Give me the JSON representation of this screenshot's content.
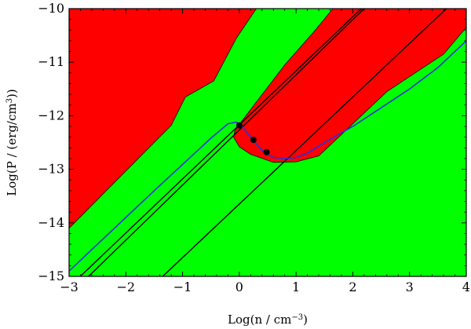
{
  "chart_data": {
    "type": "area",
    "title": "",
    "xlabel": "Log(n / cm",
    "xlabel_sup": "−3",
    "xlabel_tail": ")",
    "ylabel": "Log(P / (erg/cm",
    "ylabel_sup": "3",
    "ylabel_tail": "))",
    "xlim": [
      -3,
      4
    ],
    "ylim": [
      -15,
      -10
    ],
    "x_ticks": [
      -3,
      -2,
      -1,
      0,
      1,
      2,
      3,
      4
    ],
    "x_tick_labels": [
      "−3",
      "−2",
      "−1",
      "0",
      "1",
      "2",
      "3",
      "4"
    ],
    "y_ticks": [
      -15,
      -14,
      -13,
      -12,
      -11,
      -10
    ],
    "y_tick_labels": [
      "−15",
      "−14",
      "−13",
      "−12",
      "−11",
      "−10"
    ],
    "grid": false,
    "background_color": "#00ff00",
    "colors": {
      "unstable": "#ff0000",
      "stable": "#00ff00",
      "isotherm": "#000000",
      "equilibrium": "#2233dd",
      "marker": "#000000"
    },
    "regions": [
      {
        "name": "",
        "color": "#ff0000",
        "polygon": [
          [
            -3,
            -14.1
          ],
          [
            -1.2,
            -12.18
          ],
          [
            -0.95,
            -11.65
          ],
          [
            -0.45,
            -11.35
          ],
          [
            -0.05,
            -10.55
          ],
          [
            0.3,
            -10
          ],
          [
            -3,
            -10
          ]
        ]
      },
      {
        "name": "",
        "color": "#ff0000",
        "polygon": [
          [
            -0.08,
            -12.28
          ],
          [
            0.03,
            -12.12
          ],
          [
            0.8,
            -11.05
          ],
          [
            1.3,
            -10.45
          ],
          [
            1.65,
            -10
          ],
          [
            4,
            -10
          ],
          [
            4,
            -10.35
          ],
          [
            3.6,
            -10.85
          ],
          [
            2.6,
            -11.55
          ],
          [
            1.4,
            -12.75
          ],
          [
            1.0,
            -12.86
          ],
          [
            0.6,
            -12.87
          ],
          [
            0.2,
            -12.72
          ],
          [
            0.0,
            -12.58
          ],
          [
            -0.1,
            -12.4
          ]
        ]
      }
    ],
    "isotherms": [
      {
        "name": "",
        "x": [
          -3,
          2.15
        ],
        "y": [
          -15.2,
          -10
        ]
      },
      {
        "name": "",
        "x": [
          -2.85,
          2.2
        ],
        "y": [
          -15.2,
          -10
        ]
      },
      {
        "name": "",
        "x": [
          -1.45,
          3.65
        ],
        "y": [
          -15.1,
          -10
        ]
      }
    ],
    "series": [
      {
        "name": "",
        "x": [
          -3,
          -1.5,
          -0.5,
          -0.2,
          -0.05,
          0.05,
          0.2,
          0.4,
          0.6,
          0.8,
          1.0,
          1.2,
          1.5,
          2.0,
          2.5,
          3.0,
          3.5,
          4.0
        ],
        "y": [
          -14.9,
          -13.4,
          -12.42,
          -12.15,
          -12.12,
          -12.2,
          -12.4,
          -12.65,
          -12.78,
          -12.8,
          -12.78,
          -12.7,
          -12.5,
          -12.2,
          -11.85,
          -11.5,
          -11.1,
          -10.6
        ]
      }
    ],
    "markers": [
      {
        "x": 0.0,
        "y": -12.18
      },
      {
        "x": 0.25,
        "y": -12.45
      },
      {
        "x": 0.48,
        "y": -12.68
      }
    ]
  }
}
